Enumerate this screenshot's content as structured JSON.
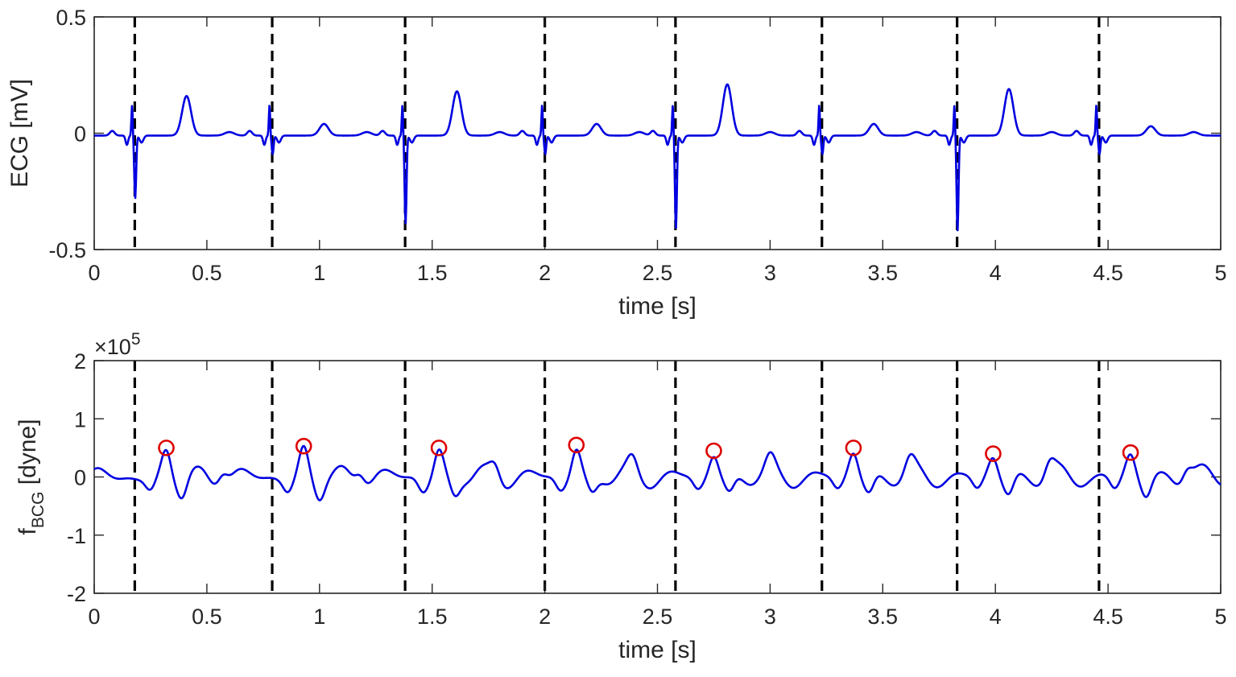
{
  "chart_data": [
    {
      "type": "line",
      "ylabel": "ECG [mV]",
      "xlabel": "time [s]",
      "xlim": [
        0,
        5
      ],
      "ylim": [
        -0.5,
        0.5
      ],
      "xticks": [
        "0",
        "0.5",
        "1",
        "1.5",
        "2",
        "2.5",
        "3",
        "3.5",
        "4",
        "4.5",
        "5"
      ],
      "yticks": [
        "-0.5",
        "0",
        "0.5"
      ],
      "line_color": "#0000e0",
      "marker_line_color": "#000000",
      "grid": false,
      "r_peaks_dashed_lines_x": [
        0.18,
        0.79,
        1.38,
        2.0,
        2.58,
        3.23,
        3.83,
        4.46
      ],
      "beats": [
        {
          "r_time": 0.18,
          "s_depth": -0.27,
          "t_amp": 0.17
        },
        {
          "r_time": 0.79,
          "s_depth": -0.08,
          "t_amp": 0.05
        },
        {
          "r_time": 1.38,
          "s_depth": -0.38,
          "t_amp": 0.19
        },
        {
          "r_time": 2.0,
          "s_depth": -0.08,
          "t_amp": 0.05
        },
        {
          "r_time": 2.58,
          "s_depth": -0.4,
          "t_amp": 0.22
        },
        {
          "r_time": 3.23,
          "s_depth": -0.08,
          "t_amp": 0.05
        },
        {
          "r_time": 3.83,
          "s_depth": -0.41,
          "t_amp": 0.2
        },
        {
          "r_time": 4.46,
          "s_depth": -0.08,
          "t_amp": 0.04
        }
      ]
    },
    {
      "type": "line",
      "ylabel_main": "f",
      "ylabel_sub": "BCG",
      "ylabel_unit": " [dyne]",
      "xlabel": "time [s]",
      "xlim": [
        0,
        5
      ],
      "ylim": [
        -2,
        2
      ],
      "y_exponent_base": "×10",
      "y_exponent_power": "5",
      "xticks": [
        "0",
        "0.5",
        "1",
        "1.5",
        "2",
        "2.5",
        "3",
        "3.5",
        "4",
        "4.5",
        "5"
      ],
      "yticks": [
        "-2",
        "-1",
        "0",
        "1",
        "2"
      ],
      "line_color": "#0000e0",
      "peak_marker_color": "#dd0000",
      "grid": false,
      "r_peaks_dashed_lines_x": [
        0.18,
        0.79,
        1.38,
        2.0,
        2.58,
        3.23,
        3.83,
        4.46
      ],
      "j_peaks": [
        {
          "x": 0.32,
          "y": 0.5
        },
        {
          "x": 0.93,
          "y": 0.53
        },
        {
          "x": 1.53,
          "y": 0.5
        },
        {
          "x": 2.14,
          "y": 0.55
        },
        {
          "x": 2.75,
          "y": 0.45
        },
        {
          "x": 3.37,
          "y": 0.5
        },
        {
          "x": 3.99,
          "y": 0.4
        },
        {
          "x": 4.6,
          "y": 0.42
        }
      ]
    }
  ]
}
